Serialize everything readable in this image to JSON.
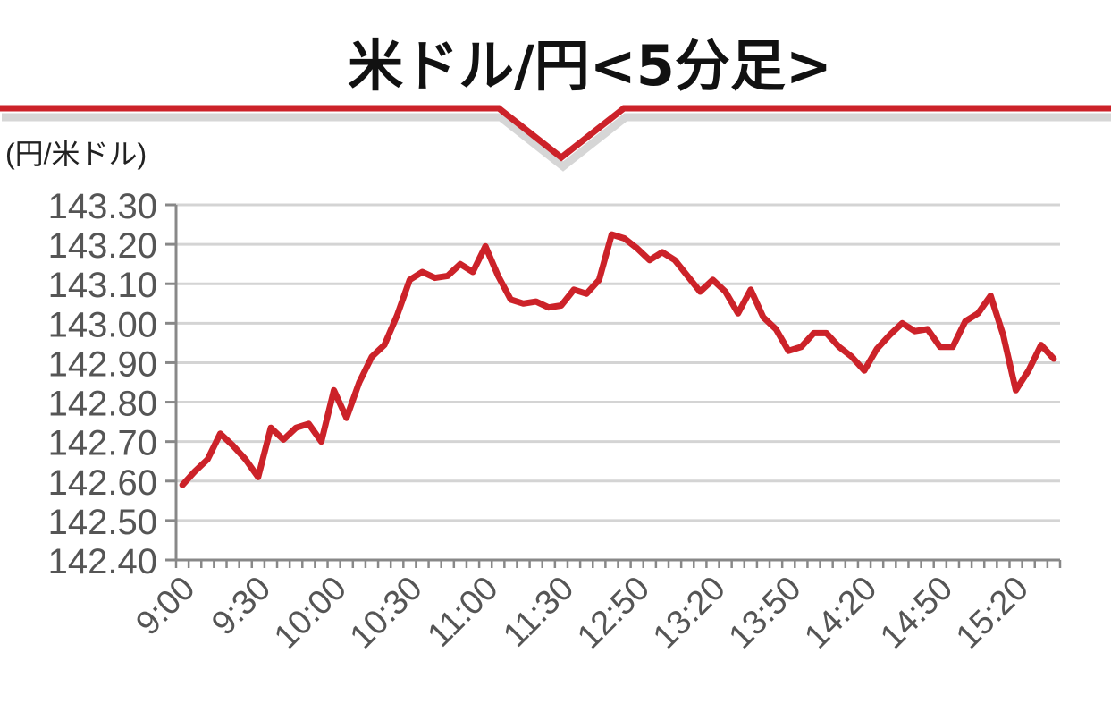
{
  "chart_data": {
    "type": "line",
    "title": "米ドル/円<5分足>",
    "ylabel": "(円/米ドル)",
    "xlabel": "",
    "ylim": [
      142.4,
      143.3
    ],
    "yticks": [
      "143.30",
      "143.20",
      "143.10",
      "143.00",
      "142.90",
      "142.80",
      "142.70",
      "142.60",
      "142.50",
      "142.40"
    ],
    "x_tick_labels": [
      "9:00",
      "9:30",
      "10:00",
      "10:30",
      "11:00",
      "11:30",
      "12:50",
      "13:20",
      "13:50",
      "14:20",
      "14:50",
      "15:20"
    ],
    "x_tick_interval": 6,
    "grid": true,
    "legend": "none",
    "line_color": "#cc2229",
    "series": [
      {
        "values": [
          142.59,
          142.625,
          142.655,
          142.72,
          142.69,
          142.655,
          142.61,
          142.735,
          142.705,
          142.735,
          142.745,
          142.7,
          142.83,
          142.76,
          142.85,
          142.915,
          142.945,
          143.02,
          143.11,
          143.13,
          143.115,
          143.12,
          143.15,
          143.13,
          143.195,
          143.12,
          143.06,
          143.05,
          143.055,
          143.04,
          143.045,
          143.085,
          143.075,
          143.11,
          143.225,
          143.215,
          143.19,
          143.16,
          143.18,
          143.16,
          143.12,
          143.08,
          143.11,
          143.08,
          143.025,
          143.085,
          143.015,
          142.985,
          142.93,
          142.94,
          142.975,
          142.975,
          142.94,
          142.915,
          142.88,
          142.935,
          142.97,
          143.0,
          142.98,
          142.985,
          142.94,
          142.94,
          143.005,
          143.025,
          143.07,
          142.97,
          142.83,
          142.88,
          142.945,
          142.91
        ]
      }
    ]
  }
}
